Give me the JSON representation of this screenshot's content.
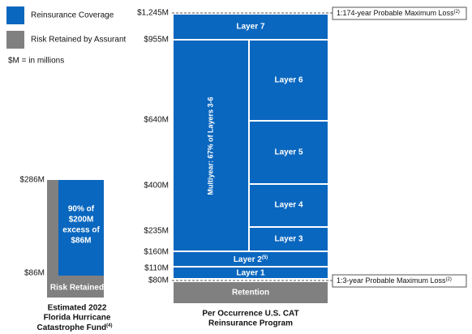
{
  "legend": [
    {
      "label": "Reinsurance Coverage",
      "color": "#0a67bf"
    },
    {
      "label": "Risk Retained by Assurant",
      "color": "#808080"
    }
  ],
  "note": "$M = in millions",
  "fhcf": {
    "axis_labels": [
      "$286M",
      "$86M"
    ],
    "coverage": [
      "90% of",
      "$200M",
      "excess of",
      "$86M"
    ],
    "retained": "Risk Retained",
    "caption": [
      "Estimated 2022",
      "Florida Hurricane",
      "Catastrophe Fund"
    ],
    "caption_note": "(4)"
  },
  "program": {
    "axis_labels": [
      "$1,245M",
      "$955M",
      "$640M",
      "$400M",
      "$235M",
      "$160M",
      "$110M",
      "$80M"
    ],
    "layers": {
      "layer7": "Layer 7",
      "multiyear": "Multiyear: 67% of Layers 3-6",
      "layer6": "Layer 6",
      "layer5": "Layer 5",
      "layer4": "Layer 4",
      "layer3": "Layer 3",
      "layer2": "Layer 2",
      "layer2_note": "(5)",
      "layer1": "Layer 1",
      "retention": "Retention"
    },
    "pml_top": "1:174-year Probable Maximum Loss",
    "pml_top_note": "(2)",
    "pml_bottom": "1:3-year Probable Maximum Loss",
    "pml_bottom_note": "(2)",
    "caption": [
      "Per Occurrence U.S. CAT",
      "Reinsurance Program"
    ]
  }
}
